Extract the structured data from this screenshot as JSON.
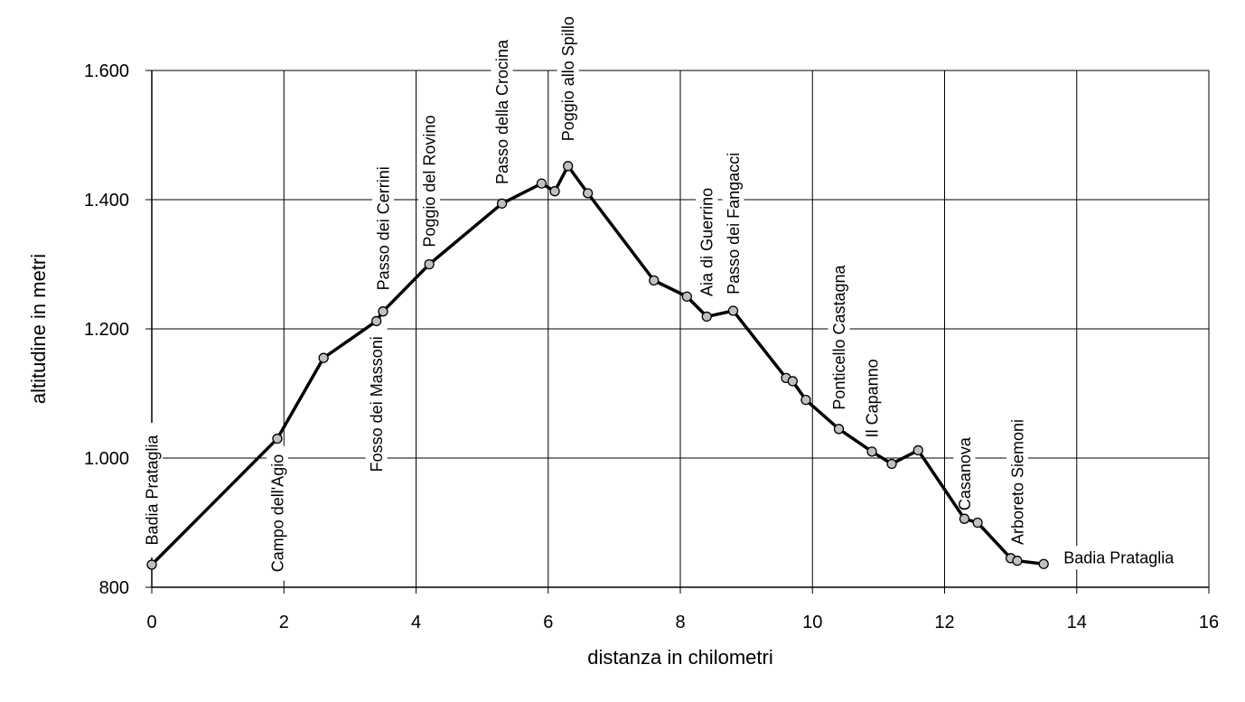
{
  "chart_data": {
    "type": "line",
    "xlabel": "distanza in chilometri",
    "ylabel": "altitudine  in metri",
    "xlim": [
      0,
      16
    ],
    "ylim": [
      800,
      1600
    ],
    "xticks": [
      "0",
      "2",
      "4",
      "6",
      "8",
      "10",
      "12",
      "14",
      "16"
    ],
    "yticks": [
      "800",
      "1.000",
      "1.200",
      "1.400",
      "1.600"
    ],
    "grid": true,
    "legend": "none",
    "line_color": "#000000",
    "marker_color": "#c0c0c0",
    "series": [
      {
        "points": [
          {
            "x": 0,
            "y": 835
          },
          {
            "x": 1.9,
            "y": 1030
          },
          {
            "x": 2.6,
            "y": 1155
          },
          {
            "x": 3.4,
            "y": 1212
          },
          {
            "x": 3.5,
            "y": 1227
          },
          {
            "x": 4.2,
            "y": 1300
          },
          {
            "x": 5.3,
            "y": 1394
          },
          {
            "x": 5.9,
            "y": 1425
          },
          {
            "x": 6.1,
            "y": 1413
          },
          {
            "x": 6.3,
            "y": 1452
          },
          {
            "x": 6.6,
            "y": 1410
          },
          {
            "x": 7.6,
            "y": 1275
          },
          {
            "x": 8.1,
            "y": 1250
          },
          {
            "x": 8.4,
            "y": 1219
          },
          {
            "x": 8.8,
            "y": 1228
          },
          {
            "x": 9.6,
            "y": 1124
          },
          {
            "x": 9.7,
            "y": 1119
          },
          {
            "x": 9.9,
            "y": 1090
          },
          {
            "x": 10.4,
            "y": 1045
          },
          {
            "x": 10.9,
            "y": 1010
          },
          {
            "x": 11.2,
            "y": 991
          },
          {
            "x": 11.6,
            "y": 1012
          },
          {
            "x": 12.3,
            "y": 906
          },
          {
            "x": 12.5,
            "y": 900
          },
          {
            "x": 13.0,
            "y": 845
          },
          {
            "x": 13.1,
            "y": 841
          },
          {
            "x": 13.5,
            "y": 836
          }
        ]
      }
    ],
    "annotations": [
      {
        "text": "Badia Prataglia",
        "x": 0,
        "y": 835,
        "vertical": true,
        "side": "above"
      },
      {
        "text": "Campo dell'Agio",
        "x": 1.9,
        "y": 1030,
        "vertical": true,
        "side": "below"
      },
      {
        "text": "Fosso dei Massoni",
        "x": 3.4,
        "y": 1212,
        "vertical": true,
        "side": "below"
      },
      {
        "text": "Passo dei Cerrini",
        "x": 3.5,
        "y": 1227,
        "vertical": true,
        "side": "above"
      },
      {
        "text": "Poggio del Rovino",
        "x": 4.2,
        "y": 1300,
        "vertical": true,
        "side": "above"
      },
      {
        "text": "Passo della Crocina",
        "x": 5.3,
        "y": 1394,
        "vertical": true,
        "side": "above"
      },
      {
        "text": "Poggio allo Spillo",
        "x": 6.3,
        "y": 1452,
        "vertical": true,
        "side": "above"
      },
      {
        "text": "Aia di Guerrino",
        "x": 8.4,
        "y": 1219,
        "vertical": true,
        "side": "above"
      },
      {
        "text": "Passo dei Fangacci",
        "x": 8.8,
        "y": 1228,
        "vertical": true,
        "side": "above"
      },
      {
        "text": "Ponticello Castagna",
        "x": 10.4,
        "y": 1045,
        "vertical": true,
        "side": "above"
      },
      {
        "text": "Il Capanno",
        "x": 10.9,
        "y": 1010,
        "vertical": true,
        "side": "above"
      },
      {
        "text": "Casanova",
        "x": 12.3,
        "y": 906,
        "vertical": true,
        "side": "above"
      },
      {
        "text": "Arboreto Siemoni",
        "x": 13.1,
        "y": 841,
        "vertical": true,
        "side": "above"
      },
      {
        "text": "Badia Prataglia",
        "x": 13.5,
        "y": 836,
        "vertical": false,
        "side": "right"
      }
    ]
  }
}
